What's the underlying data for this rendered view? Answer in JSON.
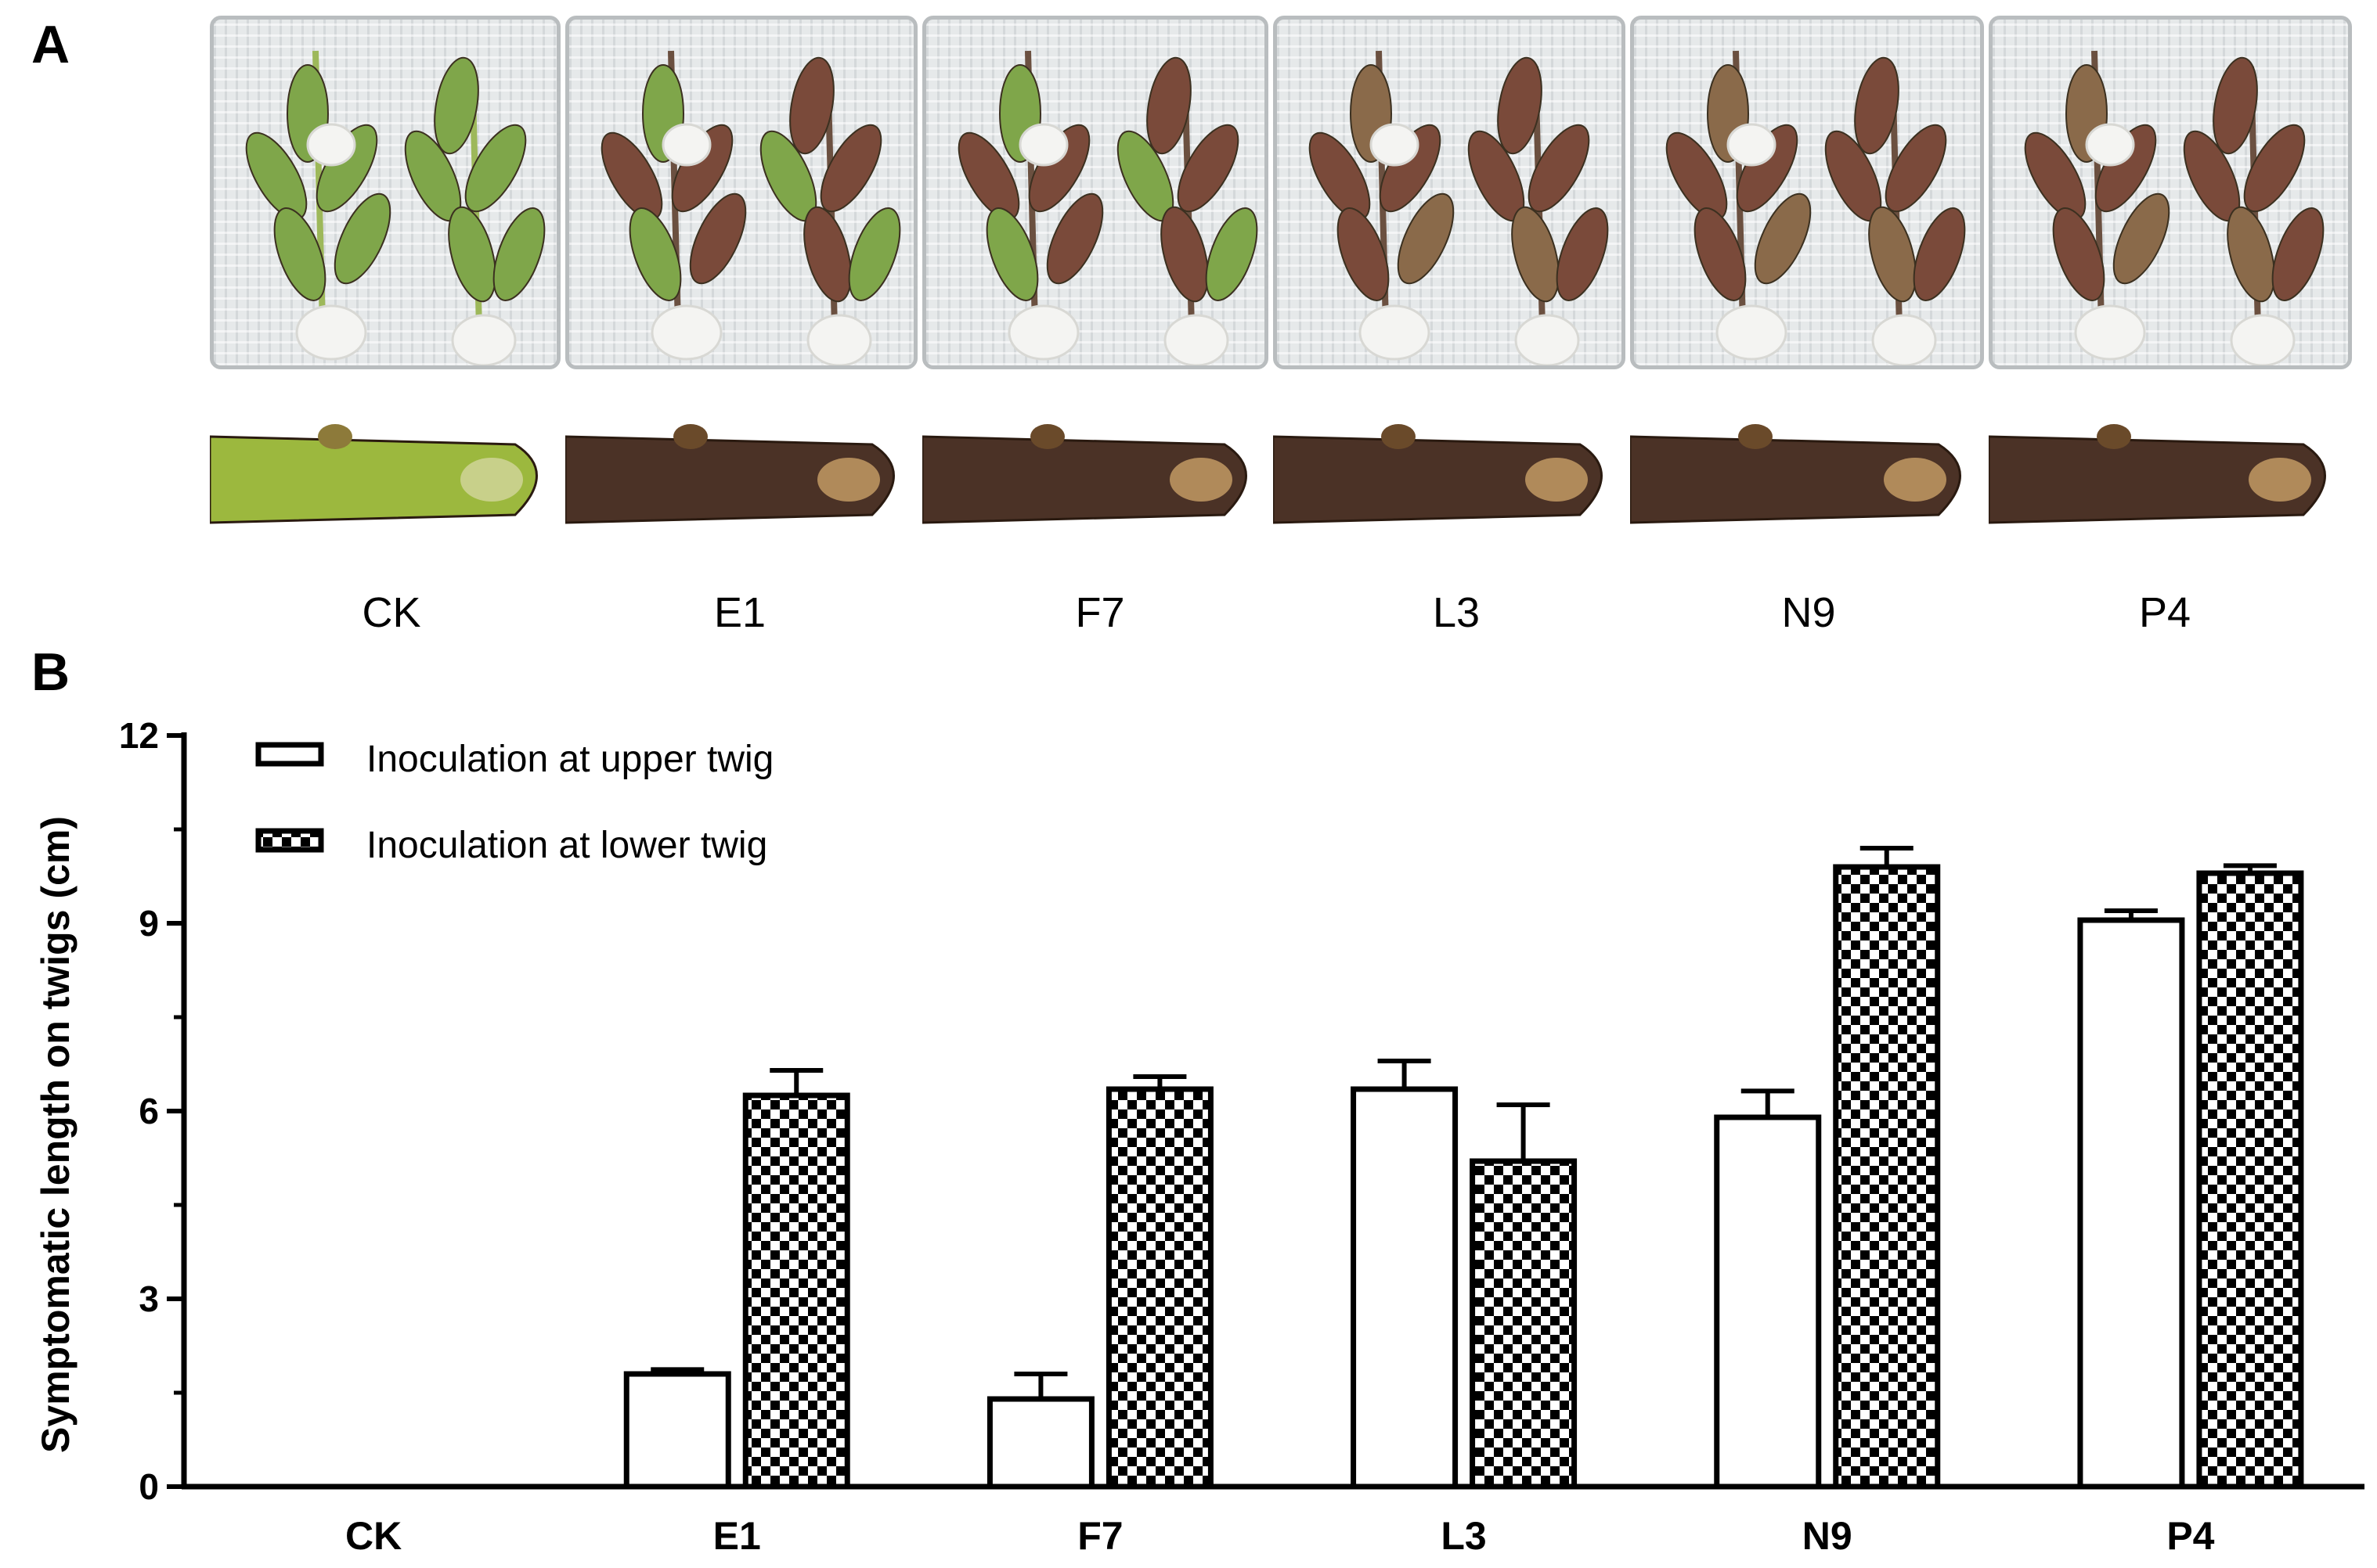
{
  "panel_a": {
    "letter": "A",
    "samples": [
      "CK",
      "E1",
      "F7",
      "L3",
      "N9",
      "P4"
    ],
    "colors": {
      "leaf_healthy": "#7fa64a",
      "leaf_diseased": "#7a4a3a",
      "cotton": "#f4f4f2",
      "twig_healthy": "#9cb83e",
      "twig_diseased": "#4b3226"
    },
    "photo_descriptions": [
      {
        "leaf_state": "healthy",
        "twig_state": "healthy"
      },
      {
        "leaf_state": "mixed",
        "twig_state": "diseased"
      },
      {
        "leaf_state": "mixed",
        "twig_state": "diseased"
      },
      {
        "leaf_state": "diseased",
        "twig_state": "diseased"
      },
      {
        "leaf_state": "diseased",
        "twig_state": "diseased"
      },
      {
        "leaf_state": "diseased",
        "twig_state": "diseased"
      }
    ]
  },
  "panel_b": {
    "letter": "B"
  },
  "chart_data": {
    "type": "bar",
    "title": "",
    "xlabel": "",
    "ylabel": "Symptomatic length on twigs (cm)",
    "ylim": [
      0,
      12
    ],
    "yticks": [
      0,
      3,
      6,
      9,
      12
    ],
    "categories": [
      "CK",
      "E1",
      "F7",
      "L3",
      "N9",
      "P4"
    ],
    "series": [
      {
        "name": "Inoculation at upper twig",
        "pattern": "open",
        "values": [
          0,
          1.8,
          1.4,
          6.35,
          5.9,
          9.05
        ],
        "errors": [
          0,
          0.07,
          0.4,
          0.45,
          0.42,
          0.15
        ]
      },
      {
        "name": "Inoculation at lower twig",
        "pattern": "checkered",
        "values": [
          0,
          6.25,
          6.35,
          5.2,
          9.9,
          9.8
        ],
        "errors": [
          0,
          0.4,
          0.2,
          0.9,
          0.3,
          0.12
        ]
      }
    ],
    "legend_position": "top-left",
    "grid": false
  }
}
